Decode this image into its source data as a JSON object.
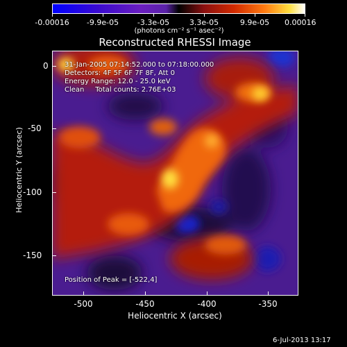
{
  "colorbar": {
    "tick_labels": [
      "-0.00016",
      "-9.9e-05",
      "-3.3e-05",
      "3.3e-05",
      "9.9e-05",
      "0.00016"
    ],
    "units": "(photons cm⁻² s⁻¹ asec⁻²)"
  },
  "title": "Reconstructed RHESSI Image",
  "info": {
    "time_range": "31-Jan-2005 07:14:52.000 to 07:18:00.000",
    "detectors": "Detectors: 4F 5F 6F 7F 8F, Att 0",
    "energy": "Energy Range: 12.0 - 25.0 keV",
    "clean": "Clean     Total counts: 2.76E+03",
    "peak": "Position of Peak = [-522,4]"
  },
  "axes": {
    "xlabel": "Heliocentric X (arcsec)",
    "ylabel": "Heliocentric Y (arcsec)",
    "x_ticks": [
      "-500",
      "-450",
      "-400",
      "-350"
    ],
    "y_ticks": [
      "0",
      "-50",
      "-100",
      "-150"
    ]
  },
  "timestamp": "6-Jul-2013 13:17",
  "colors": {
    "background": "#000000",
    "low": "#0000ff",
    "mid": "#000000",
    "high": "#ffffff"
  }
}
